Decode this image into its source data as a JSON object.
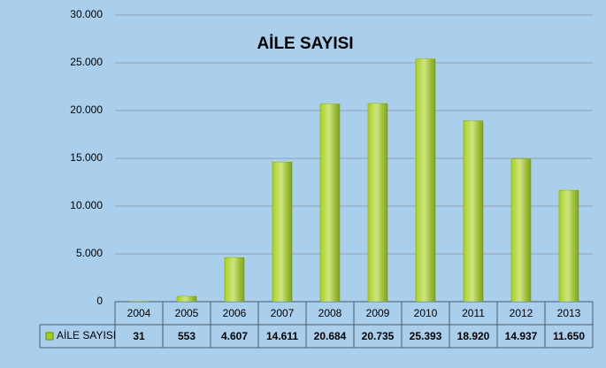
{
  "chart_data": {
    "type": "bar",
    "title": "AİLE SAYISI",
    "categories": [
      "2004",
      "2005",
      "2006",
      "2007",
      "2008",
      "2009",
      "2010",
      "2011",
      "2012",
      "2013"
    ],
    "series": [
      {
        "name": "AİLE SAYISI",
        "color": "#a8d11e",
        "values": [
          31,
          553,
          4607,
          14611,
          20684,
          20735,
          25393,
          18920,
          14937,
          11650
        ],
        "value_labels": [
          "31",
          "553",
          "4.607",
          "14.611",
          "20.684",
          "20.735",
          "25.393",
          "18.920",
          "14.937",
          "11.650"
        ]
      }
    ],
    "ylim": [
      0,
      30000
    ],
    "yticks": [
      0,
      {
        "value": 5000,
        "label": "5.000"
      },
      {
        "value": 10000,
        "label": "10.000"
      },
      {
        "value": 15000,
        "label": "15.000"
      },
      {
        "value": 20000,
        "label": "20.000"
      },
      {
        "value": 25000,
        "label": "25.000"
      },
      {
        "value": 30000,
        "label": "30.000"
      }
    ],
    "grid": true
  }
}
